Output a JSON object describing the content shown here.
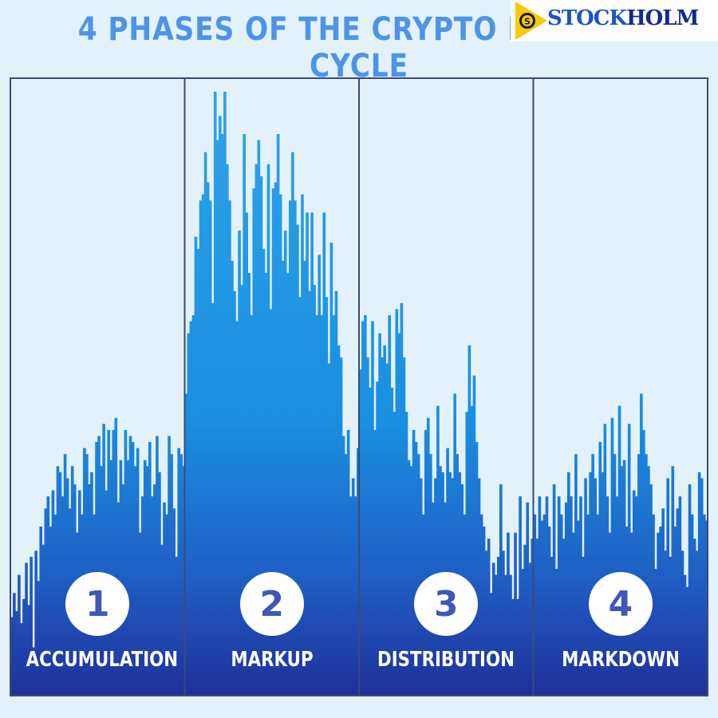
{
  "title": "4 PHASES OF THE CRYPTO MARKET CYCLE",
  "logo": {
    "text_part1": "STOCK",
    "text_part2": "HOLM",
    "icon": "stockholm-logo-icon"
  },
  "colors": {
    "title": "#4d94e8",
    "bar_top": "#2ea3e8",
    "bar_bottom": "#1f3aa8",
    "background": "#e3f1fa",
    "divider": "#3a4a7a"
  },
  "chart_data": {
    "type": "bar",
    "ylim": [
      0,
      100
    ],
    "phases": [
      {
        "number": "1",
        "label": "ACCUMULATION",
        "values": [
          13,
          17,
          14,
          20,
          12,
          16,
          22,
          15,
          23,
          8,
          24,
          19,
          28,
          25,
          31,
          33,
          28,
          34,
          30,
          38,
          37,
          33,
          40,
          36,
          31,
          38,
          35,
          27,
          34,
          30,
          41,
          40,
          35,
          37,
          30,
          42,
          43,
          38,
          45,
          34,
          44,
          39,
          44,
          46,
          32,
          39,
          35,
          44,
          39,
          43,
          42,
          38,
          41,
          27,
          33,
          39,
          38,
          42,
          33,
          35,
          43,
          37,
          25,
          32,
          30,
          43,
          40,
          31,
          23,
          41,
          40,
          38
        ]
      },
      {
        "number": "2",
        "label": "MARKUP",
        "values": [
          50,
          60,
          62,
          63,
          76,
          74,
          82,
          83,
          90,
          85,
          82,
          65,
          100,
          92,
          96,
          93,
          100,
          88,
          82,
          72,
          67,
          62,
          77,
          68,
          93,
          80,
          70,
          63,
          84,
          88,
          92,
          86,
          74,
          70,
          88,
          64,
          84,
          85,
          93,
          83,
          72,
          77,
          70,
          82,
          90,
          82,
          78,
          66,
          83,
          72,
          80,
          67,
          80,
          68,
          63,
          73,
          63,
          80,
          66,
          55,
          75,
          63,
          67,
          58,
          56,
          43,
          40,
          44,
          33,
          36,
          33,
          41
        ]
      },
      {
        "number": "3",
        "label": "DISTRIBUTION",
        "values": [
          54,
          62,
          63,
          56,
          51,
          62,
          44,
          52,
          60,
          56,
          58,
          55,
          63,
          51,
          47,
          64,
          60,
          65,
          56,
          47,
          39,
          38,
          44,
          42,
          40,
          36,
          30,
          44,
          46,
          40,
          32,
          36,
          48,
          38,
          37,
          32,
          41,
          37,
          36,
          50,
          40,
          37,
          35,
          30,
          47,
          58,
          48,
          53,
          42,
          36,
          30,
          28,
          24,
          26,
          17,
          22,
          20,
          23,
          35,
          24,
          20,
          27,
          20,
          16,
          27,
          16,
          33,
          21,
          25,
          32,
          22,
          26
        ]
      },
      {
        "number": "4",
        "label": "MARKDOWN",
        "values": [
          30,
          26,
          33,
          29,
          30,
          33,
          28,
          23,
          35,
          21,
          33,
          30,
          26,
          32,
          37,
          33,
          27,
          40,
          29,
          33,
          23,
          36,
          30,
          37,
          40,
          36,
          30,
          42,
          37,
          45,
          33,
          27,
          46,
          40,
          33,
          48,
          38,
          39,
          28,
          45,
          27,
          34,
          33,
          40,
          50,
          44,
          40,
          38,
          35,
          30,
          21,
          27,
          28,
          31,
          24,
          36,
          23,
          38,
          28,
          31,
          33,
          24,
          20,
          18,
          35,
          30,
          26,
          24,
          37,
          36,
          30,
          29
        ]
      }
    ]
  }
}
